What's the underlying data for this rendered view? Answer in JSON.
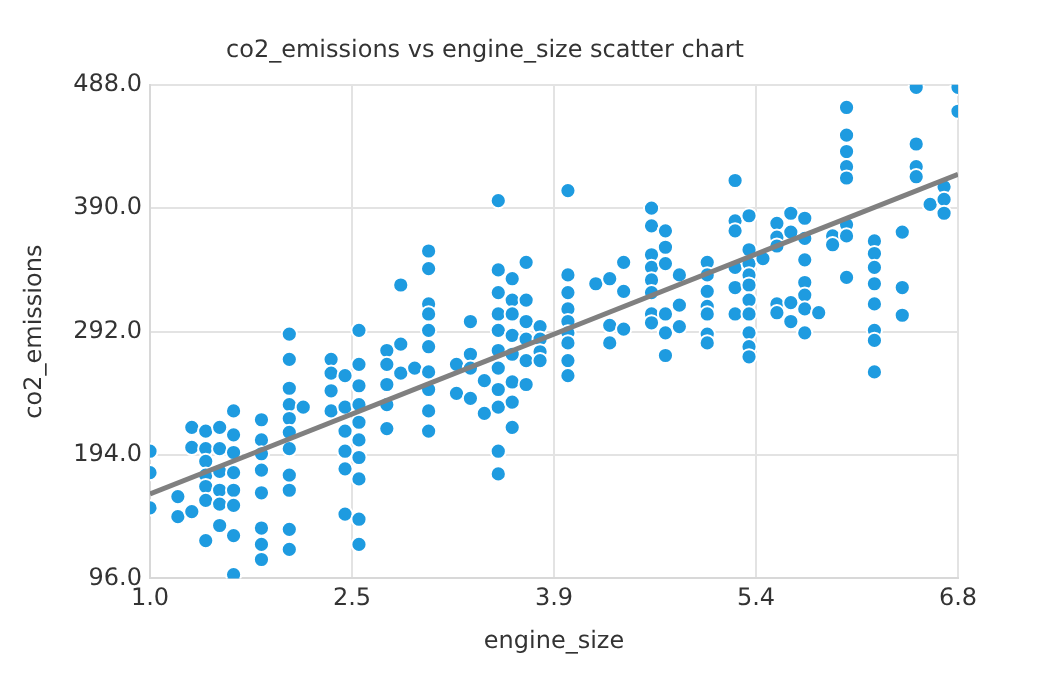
{
  "chart_data": {
    "type": "scatter",
    "title": "co2_emissions vs engine_size scatter chart",
    "xlabel": "engine_size",
    "ylabel": "co2_emissions",
    "xlim": [
      1.0,
      6.8
    ],
    "xticks": [
      {
        "value": 1.0,
        "label": "1.0"
      },
      {
        "value": 2.45,
        "label": "2.5"
      },
      {
        "value": 3.9,
        "label": "3.9"
      },
      {
        "value": 5.35,
        "label": "5.4"
      },
      {
        "value": 6.8,
        "label": "6.8"
      }
    ],
    "ylim": [
      96,
      488
    ],
    "yticks": [
      {
        "value": 96,
        "label": "96.0"
      },
      {
        "value": 194,
        "label": "194.0"
      },
      {
        "value": 292,
        "label": "292.0"
      },
      {
        "value": 390,
        "label": "390.0"
      },
      {
        "value": 488,
        "label": "488.0"
      }
    ],
    "grid": true,
    "legend": false,
    "series": [
      {
        "marker": "circle",
        "color": "#1e9be0",
        "x": [
          1.0,
          1.0,
          1.0,
          1.2,
          1.2,
          1.3,
          1.3,
          1.3,
          1.4,
          1.4,
          1.4,
          1.4,
          1.4,
          1.4,
          1.4,
          1.5,
          1.5,
          1.5,
          1.5,
          1.5,
          1.5,
          1.6,
          1.6,
          1.6,
          1.6,
          1.6,
          1.6,
          1.6,
          1.6,
          1.8,
          1.8,
          1.8,
          1.8,
          1.8,
          1.8,
          1.8,
          1.8,
          2.0,
          2.0,
          2.0,
          2.0,
          2.0,
          2.0,
          2.0,
          2.0,
          2.0,
          2.0,
          2.0,
          2.1,
          2.3,
          2.3,
          2.3,
          2.3,
          2.4,
          2.4,
          2.4,
          2.4,
          2.4,
          2.4,
          2.5,
          2.5,
          2.5,
          2.5,
          2.5,
          2.5,
          2.5,
          2.5,
          2.5,
          2.5,
          2.7,
          2.7,
          2.7,
          2.7,
          2.7,
          2.8,
          2.8,
          2.8,
          2.9,
          3.0,
          3.0,
          3.0,
          3.0,
          3.0,
          3.0,
          3.0,
          3.0,
          3.0,
          3.0,
          3.2,
          3.2,
          3.3,
          3.3,
          3.3,
          3.3,
          3.4,
          3.4,
          3.5,
          3.5,
          3.5,
          3.5,
          3.5,
          3.5,
          3.5,
          3.5,
          3.5,
          3.5,
          3.5,
          3.6,
          3.6,
          3.6,
          3.6,
          3.6,
          3.6,
          3.6,
          3.6,
          3.7,
          3.7,
          3.7,
          3.7,
          3.7,
          3.7,
          3.8,
          3.8,
          3.8,
          3.8,
          4.0,
          4.0,
          4.0,
          4.0,
          4.0,
          4.0,
          4.0,
          4.0,
          4.0,
          4.2,
          4.3,
          4.3,
          4.3,
          4.4,
          4.4,
          4.4,
          4.6,
          4.6,
          4.6,
          4.6,
          4.6,
          4.6,
          4.6,
          4.6,
          4.7,
          4.7,
          4.7,
          4.7,
          4.7,
          4.7,
          4.8,
          4.8,
          4.8,
          5.0,
          5.0,
          5.0,
          5.0,
          5.0,
          5.0,
          5.0,
          5.2,
          5.2,
          5.2,
          5.2,
          5.2,
          5.2,
          5.3,
          5.3,
          5.3,
          5.3,
          5.3,
          5.3,
          5.3,
          5.3,
          5.3,
          5.3,
          5.4,
          5.5,
          5.5,
          5.5,
          5.5,
          5.5,
          5.6,
          5.6,
          5.6,
          5.6,
          5.7,
          5.7,
          5.7,
          5.7,
          5.7,
          5.7,
          5.7,
          5.8,
          5.9,
          5.9,
          6.0,
          6.0,
          6.0,
          6.0,
          6.0,
          6.0,
          6.0,
          6.0,
          6.2,
          6.2,
          6.2,
          6.2,
          6.2,
          6.2,
          6.2,
          6.2,
          6.4,
          6.4,
          6.4,
          6.5,
          6.5,
          6.5,
          6.5,
          6.6,
          6.7,
          6.7,
          6.7,
          6.8,
          6.8
        ],
        "values": [
          197,
          180,
          152,
          161,
          145,
          216,
          200,
          149,
          213,
          199,
          189,
          178,
          169,
          158,
          126,
          216,
          199,
          181,
          166,
          155,
          138,
          229,
          210,
          196,
          180,
          166,
          154,
          130,
          99,
          222,
          206,
          195,
          182,
          164,
          136,
          123,
          111,
          290,
          270,
          247,
          234,
          223,
          212,
          199,
          178,
          166,
          135,
          119,
          232,
          270,
          259,
          245,
          229,
          257,
          232,
          213,
          197,
          183,
          147,
          293,
          266,
          249,
          234,
          220,
          206,
          192,
          175,
          143,
          123,
          277,
          266,
          250,
          234,
          215,
          329,
          282,
          259,
          263,
          356,
          342,
          314,
          306,
          293,
          280,
          260,
          246,
          229,
          213,
          266,
          243,
          300,
          274,
          263,
          239,
          253,
          227,
          396,
          341,
          323,
          306,
          293,
          277,
          263,
          246,
          232,
          197,
          179,
          334,
          317,
          306,
          289,
          274,
          252,
          236,
          216,
          347,
          317,
          300,
          286,
          269,
          250,
          296,
          286,
          276,
          269,
          404,
          337,
          323,
          310,
          300,
          291,
          283,
          269,
          257,
          330,
          334,
          297,
          283,
          347,
          324,
          294,
          390,
          376,
          353,
          343,
          333,
          323,
          306,
          299,
          372,
          359,
          346,
          306,
          291,
          273,
          337,
          313,
          296,
          347,
          337,
          324,
          312,
          306,
          290,
          283,
          412,
          380,
          372,
          343,
          327,
          306,
          384,
          357,
          346,
          337,
          329,
          317,
          306,
          291,
          280,
          272,
          350,
          378,
          367,
          360,
          314,
          307,
          386,
          371,
          315,
          300,
          382,
          366,
          349,
          331,
          321,
          310,
          291,
          307,
          368,
          361,
          470,
          448,
          435,
          423,
          414,
          377,
          368,
          335,
          364,
          354,
          343,
          330,
          314,
          293,
          285,
          260,
          371,
          327,
          305,
          486,
          441,
          423,
          415,
          393,
          407,
          397,
          386,
          486,
          467
        ]
      },
      {
        "type": "line",
        "color": "#808080",
        "x": [
          1.0,
          6.8
        ],
        "values": [
          163,
          417
        ]
      }
    ]
  }
}
